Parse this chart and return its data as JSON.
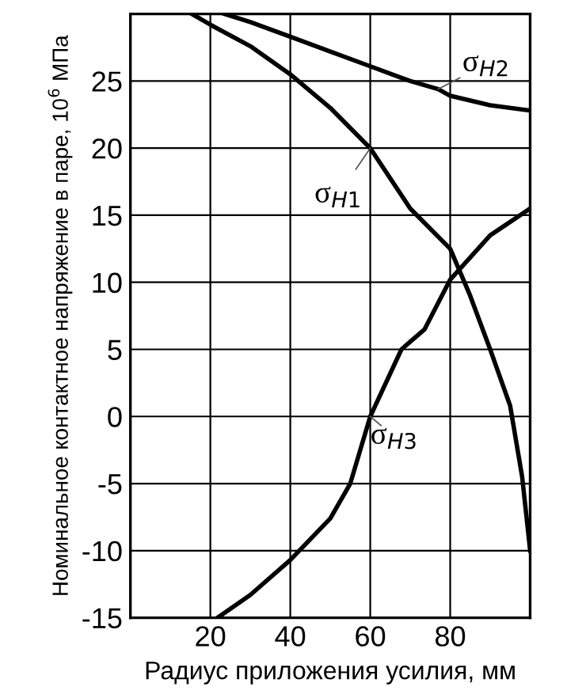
{
  "chart_data": {
    "type": "line",
    "xlabel": "Радиус приложения усилия, мм",
    "ylabel": "Номинальное контактное напряжение в паре, 10$^{6}$ МПа",
    "xlim": [
      0,
      100
    ],
    "ylim": [
      -15,
      30
    ],
    "xticks": [
      20,
      40,
      60,
      80
    ],
    "yticks": [
      -15,
      -10,
      -5,
      0,
      5,
      10,
      15,
      20,
      25
    ],
    "grid": true,
    "legend": false,
    "line_style": "solid",
    "marker": "none",
    "series": [
      {
        "name": "σ$_{H1}$",
        "color": "#000000",
        "x": [
          15.4,
          20,
          30,
          40,
          50,
          60,
          70,
          80,
          85,
          90,
          95,
          98,
          100
        ],
        "values": [
          30,
          29.2,
          27.6,
          25.5,
          23,
          20,
          15.5,
          12.5,
          9,
          5,
          0.8,
          -4.5,
          -10
        ]
      },
      {
        "name": "σ$_{H2}$",
        "color": "#000000",
        "x": [
          23.6,
          30,
          40,
          50,
          60,
          70,
          77,
          80,
          90,
          100
        ],
        "values": [
          30,
          29.4,
          28.3,
          27.2,
          26.1,
          25,
          24.4,
          23.9,
          23.2,
          22.8
        ]
      },
      {
        "name": "σ$_{H3}$",
        "color": "#000000",
        "x": [
          21.8,
          30,
          40,
          50,
          55,
          60,
          67.8,
          73.6,
          80,
          90,
          100
        ],
        "values": [
          -15,
          -13.3,
          -10.7,
          -7.6,
          -5,
          0,
          5,
          6.5,
          10.2,
          13.5,
          15.5
        ]
      }
    ]
  }
}
